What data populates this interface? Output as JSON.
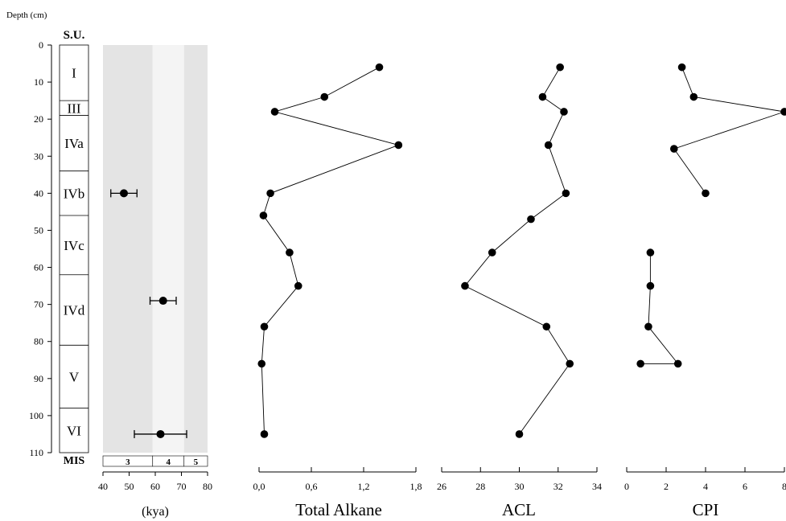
{
  "depth_axis": {
    "label": "Depth (cm)",
    "range": [
      0,
      110
    ],
    "ticks": [
      0,
      10,
      20,
      30,
      40,
      50,
      60,
      70,
      80,
      90,
      100,
      110
    ]
  },
  "su_column": {
    "header": "S.U.",
    "units": [
      {
        "label": "I",
        "top": 0,
        "bottom": 15
      },
      {
        "label": "III",
        "top": 15,
        "bottom": 19
      },
      {
        "label": "IVa",
        "top": 19,
        "bottom": 34
      },
      {
        "label": "IVb",
        "top": 34,
        "bottom": 46
      },
      {
        "label": "IVc",
        "top": 46,
        "bottom": 62
      },
      {
        "label": "IVd",
        "top": 62,
        "bottom": 81
      },
      {
        "label": "V",
        "top": 81,
        "bottom": 98
      },
      {
        "label": "VI",
        "top": 98,
        "bottom": 110
      }
    ]
  },
  "mis": {
    "label": "MIS",
    "stages": [
      {
        "label": "3",
        "from": 40,
        "to": 59,
        "shade": "#e4e4e4"
      },
      {
        "label": "4",
        "from": 59,
        "to": 71,
        "shade": "#f4f4f4"
      },
      {
        "label": "5",
        "from": 71,
        "to": 80,
        "shade": "#e4e4e4"
      }
    ]
  },
  "chart_data": [
    {
      "type": "scatter",
      "id": "age",
      "xlabel": "(kya)",
      "xlim": [
        40,
        80
      ],
      "xticks": [
        "40",
        "50",
        "60",
        "70",
        "80"
      ],
      "xtick_values": [
        40,
        50,
        60,
        70,
        80
      ],
      "points": [
        {
          "age": 48,
          "depth": 40,
          "err_low": 43,
          "err_high": 53
        },
        {
          "age": 63,
          "depth": 69,
          "err_low": 58,
          "err_high": 68
        },
        {
          "age": 62,
          "depth": 105,
          "err_low": 52,
          "err_high": 72
        }
      ]
    },
    {
      "type": "line",
      "id": "alkane",
      "xlabel": "Total Alkane",
      "xlim": [
        0,
        1.8
      ],
      "xticks": [
        "0,0",
        "0,6",
        "1,2",
        "1,8"
      ],
      "xtick_values": [
        0,
        0.6,
        1.2,
        1.8
      ],
      "x": [
        1.38,
        0.75,
        0.18,
        1.6,
        0.13,
        0.05,
        0.35,
        0.45,
        0.06,
        0.03,
        0.06
      ],
      "depth": [
        6,
        14,
        18,
        27,
        40,
        46,
        56,
        65,
        76,
        86,
        105
      ]
    },
    {
      "type": "line",
      "id": "acl",
      "xlabel": "ACL",
      "xlim": [
        26,
        34
      ],
      "xticks": [
        "26",
        "28",
        "30",
        "32",
        "34"
      ],
      "xtick_values": [
        26,
        28,
        30,
        32,
        34
      ],
      "x": [
        32.1,
        31.2,
        32.3,
        31.5,
        32.4,
        30.6,
        28.6,
        27.2,
        31.4,
        32.6,
        30.0
      ],
      "depth": [
        6,
        14,
        18,
        27,
        40,
        47,
        56,
        65,
        76,
        86,
        105
      ]
    },
    {
      "type": "line",
      "id": "cpi",
      "xlabel": "CPI",
      "xlim": [
        0,
        8
      ],
      "xticks": [
        "0",
        "2",
        "4",
        "6",
        "8"
      ],
      "xtick_values": [
        0,
        2,
        4,
        6,
        8
      ],
      "segments": [
        {
          "x": [
            2.8,
            3.4,
            8.0,
            2.4,
            4.0
          ],
          "depth": [
            6,
            14,
            18,
            28,
            40
          ]
        },
        {
          "x": [
            1.2,
            1.2,
            1.1,
            2.6,
            0.7
          ],
          "depth": [
            56,
            65,
            76,
            86,
            86
          ]
        }
      ]
    }
  ]
}
